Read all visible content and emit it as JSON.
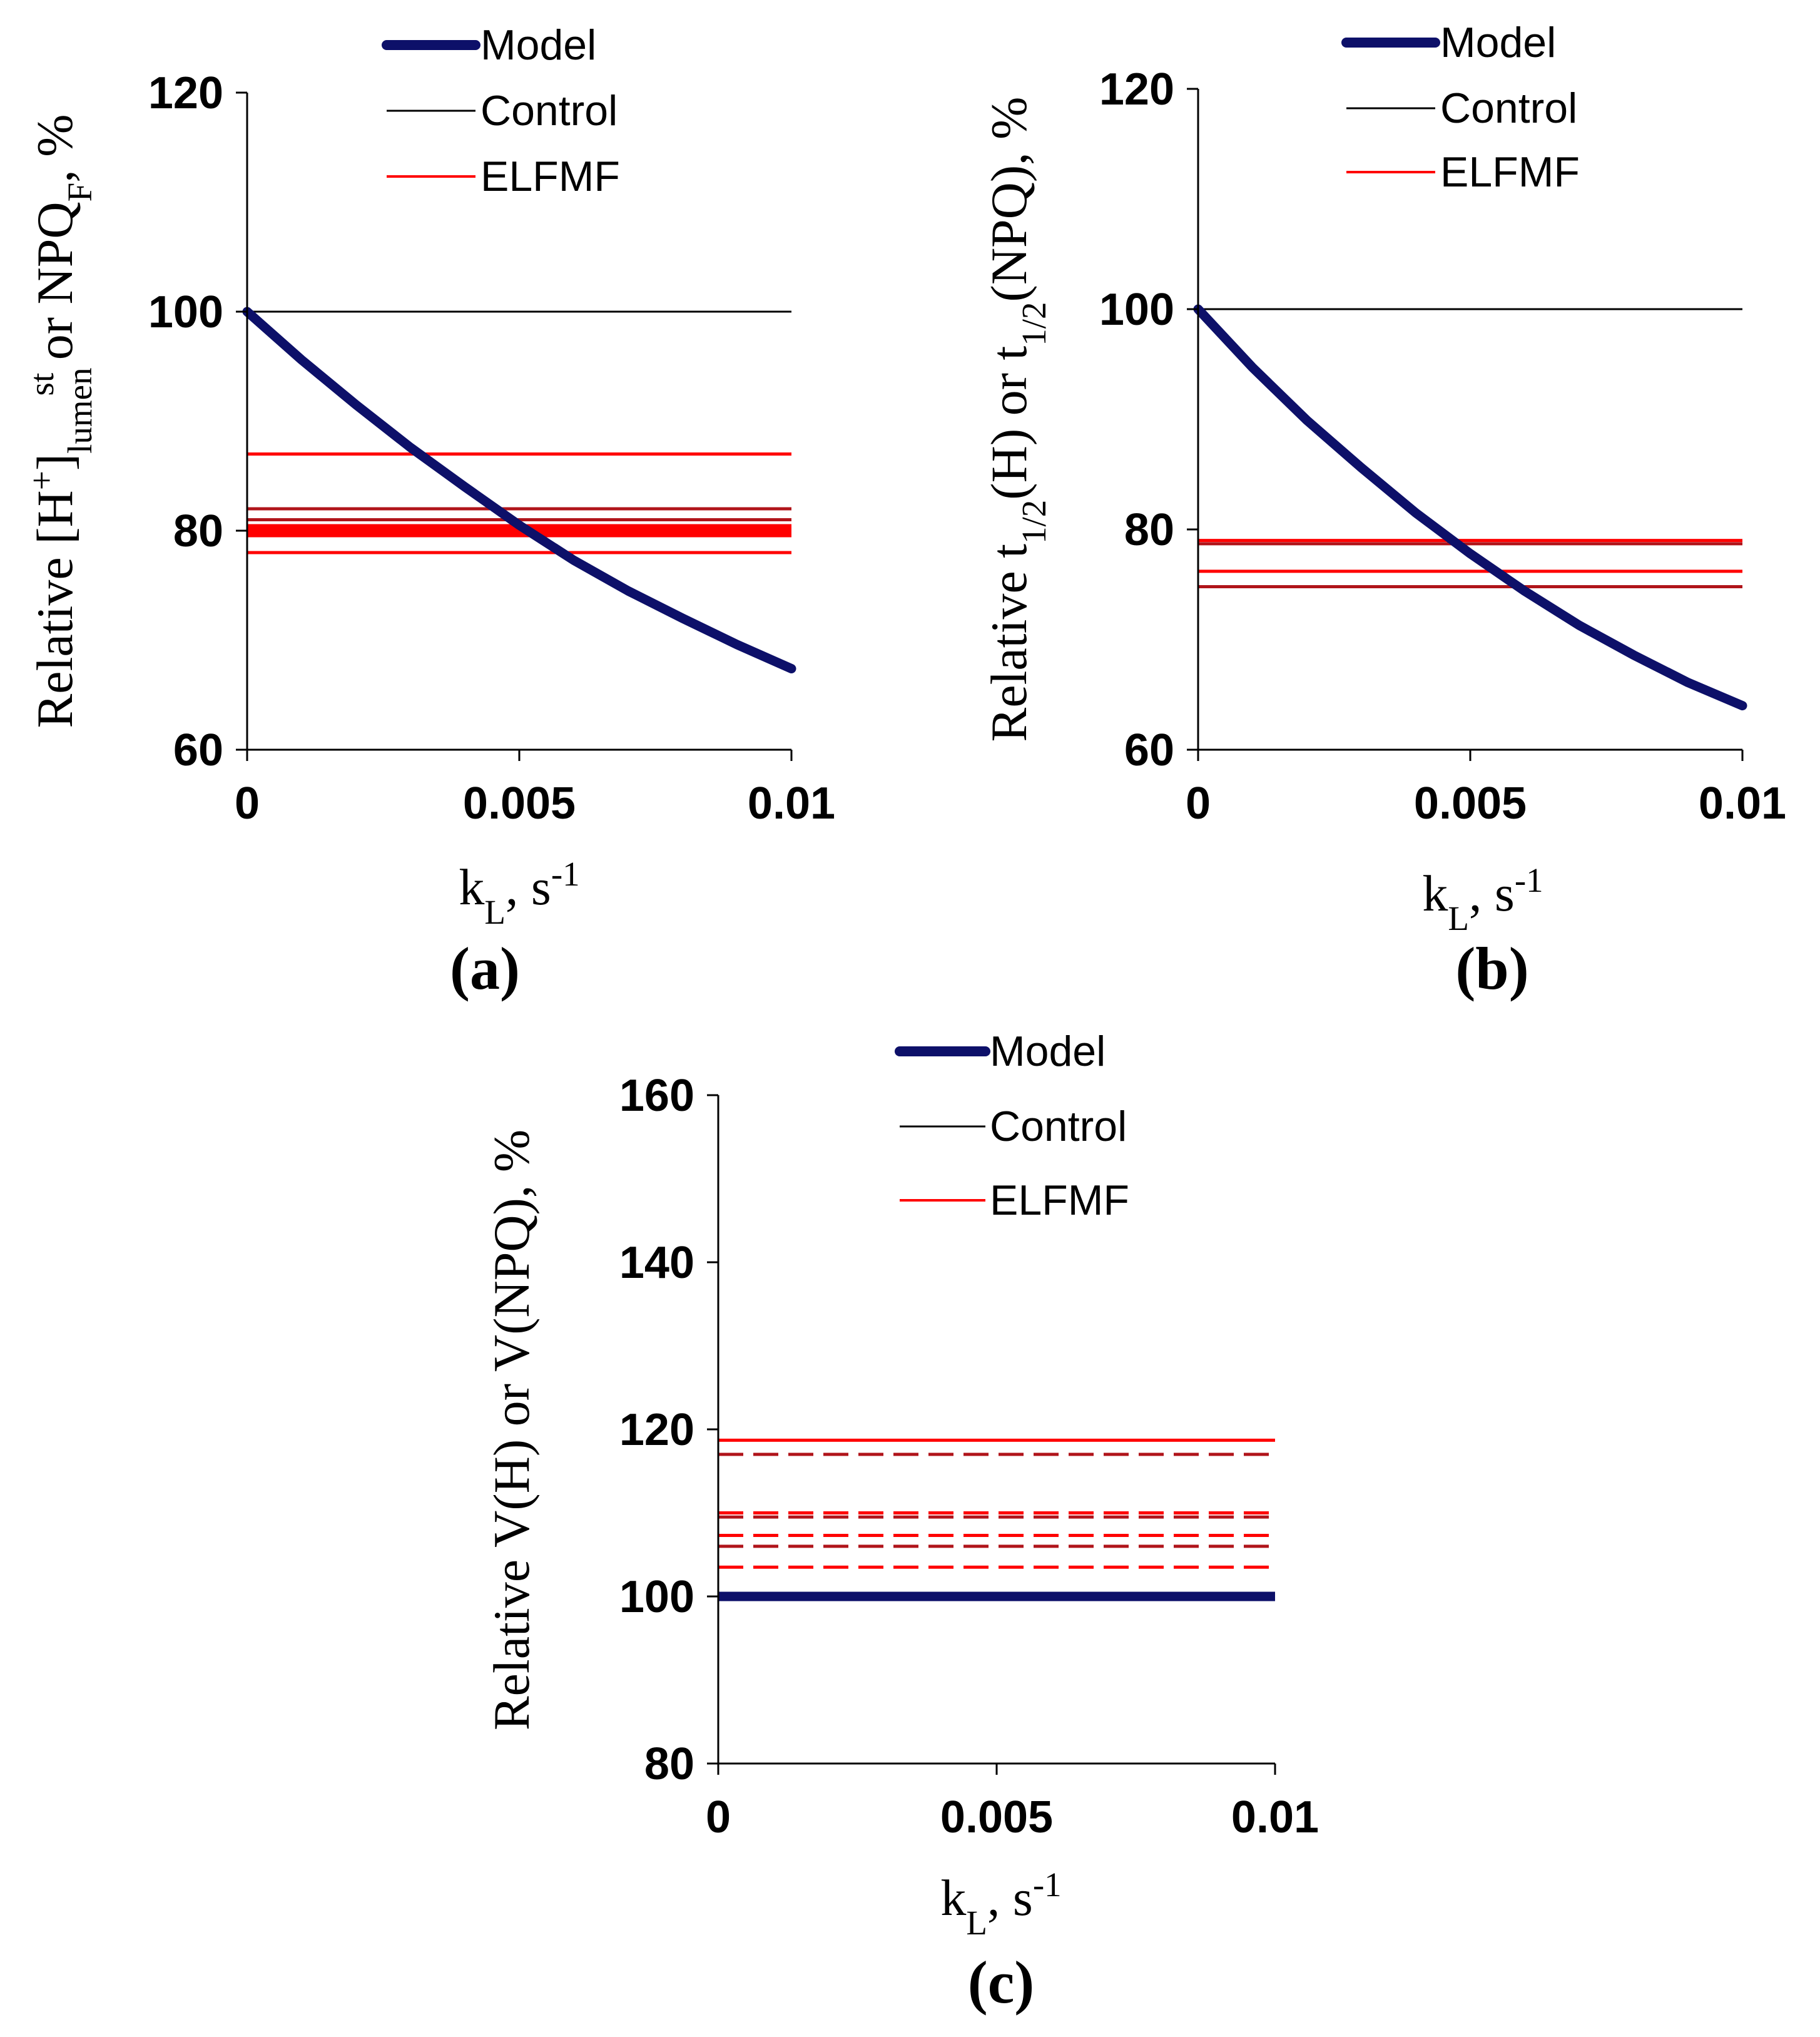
{
  "colors": {
    "model": "#0d1069",
    "control": "#000000",
    "elfmf": "#ff0000",
    "elfmf_dark": "#b0141a"
  },
  "chart_data": [
    {
      "type": "line",
      "panel_label": "(a)",
      "ylabel": "Relative [H+]lumen st or NPQF, %",
      "ylabel_parts": {
        "main": "Relative [H",
        "sup1": "+",
        "close": "]",
        "sub1": "lumen",
        "sup2": "st",
        "mid": " or NPQ",
        "sub2": "F",
        "end": ", %"
      },
      "xlabel": "kL, s-1",
      "xlabel_parts": {
        "main": "k",
        "sub": "L",
        "mid": ", s",
        "sup": "-1"
      },
      "xlim": [
        0,
        0.01
      ],
      "ylim": [
        60,
        120
      ],
      "xticks": [
        0,
        0.005,
        0.01
      ],
      "xtick_labels": [
        "0",
        "0.005",
        "0.01"
      ],
      "yticks": [
        60,
        80,
        100,
        120
      ],
      "ytick_labels": [
        "60",
        "80",
        "100",
        "120"
      ],
      "legend": [
        "Model",
        "Control",
        "ELFMF"
      ],
      "series": [
        {
          "name": "Model",
          "x": [
            0,
            0.001,
            0.002,
            0.003,
            0.004,
            0.005,
            0.006,
            0.007,
            0.008,
            0.009,
            0.01
          ],
          "values": [
            100,
            95.6,
            91.5,
            87.6,
            84.0,
            80.5,
            77.3,
            74.5,
            72.0,
            69.6,
            67.4
          ]
        },
        {
          "name": "Control",
          "value": 100
        },
        {
          "name": "ELFMF",
          "values": [
            87,
            82,
            81,
            80.4,
            80,
            79.6,
            78
          ],
          "dashed": false
        }
      ]
    },
    {
      "type": "line",
      "panel_label": "(b)",
      "ylabel": "Relative t1/2(H) or t1/2(NPQ), %",
      "ylabel_parts": {
        "main": "Relative t",
        "sub1": "1/2",
        "mid": "(H) or t",
        "sub2": "1/2",
        "end": "(NPQ), %"
      },
      "xlabel": "kL, s-1",
      "xlabel_parts": {
        "main": "k",
        "sub": "L",
        "mid": ", s",
        "sup": "-1"
      },
      "xlim": [
        0,
        0.01
      ],
      "ylim": [
        60,
        120
      ],
      "xticks": [
        0,
        0.005,
        0.01
      ],
      "xtick_labels": [
        "0",
        "0.005",
        "0.01"
      ],
      "yticks": [
        60,
        80,
        100,
        120
      ],
      "ytick_labels": [
        "60",
        "80",
        "100",
        "120"
      ],
      "legend": [
        "Model",
        "Control",
        "ELFMF"
      ],
      "series": [
        {
          "name": "Model",
          "x": [
            0,
            0.001,
            0.002,
            0.003,
            0.004,
            0.005,
            0.006,
            0.007,
            0.008,
            0.009,
            0.01
          ],
          "values": [
            100,
            94.7,
            89.9,
            85.6,
            81.5,
            77.8,
            74.4,
            71.3,
            68.6,
            66.1,
            64.0
          ]
        },
        {
          "name": "Control",
          "value": 100
        },
        {
          "name": "ELFMF",
          "values": [
            79,
            78.7,
            76.2,
            74.8
          ],
          "dashed": false
        }
      ]
    },
    {
      "type": "line",
      "panel_label": "(c)",
      "ylabel": "Relative V(H) or V(NPQ), %",
      "ylabel_parts": {
        "main": "Relative V(H) or V(NPQ), %"
      },
      "xlabel": "kL, s-1",
      "xlabel_parts": {
        "main": "k",
        "sub": "L",
        "mid": ", s",
        "sup": "-1"
      },
      "xlim": [
        0,
        0.01
      ],
      "ylim": [
        80,
        160
      ],
      "xticks": [
        0,
        0.005,
        0.01
      ],
      "xtick_labels": [
        "0",
        "0.005",
        "0.01"
      ],
      "yticks": [
        80,
        100,
        120,
        140,
        160
      ],
      "ytick_labels": [
        "80",
        "100",
        "120",
        "140",
        "160"
      ],
      "legend": [
        "Model",
        "Control",
        "ELFMF"
      ],
      "series": [
        {
          "name": "Model",
          "value": 100
        },
        {
          "name": "Control",
          "value": 100
        },
        {
          "name": "ELFMF",
          "values": [
            118.7,
            117,
            110,
            109.5,
            107.3,
            106,
            103.5
          ],
          "dashed_from_index": 1
        }
      ]
    }
  ]
}
